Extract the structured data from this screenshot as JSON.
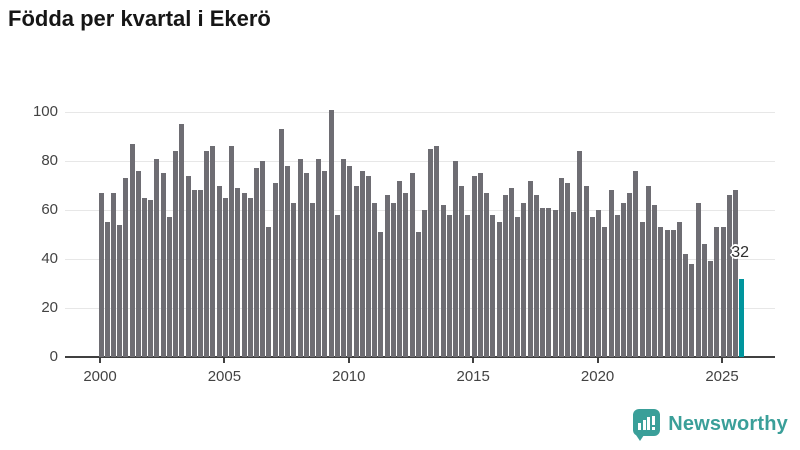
{
  "title": "Födda per kvartal i Ekerö",
  "chart_data": {
    "type": "bar",
    "title": "Födda per kvartal i Ekerö",
    "series_name": "Födda per kvartal",
    "period": "quarterly",
    "start": "2000-Q1",
    "end": "2025-Q4",
    "values": [
      67,
      55,
      67,
      54,
      73,
      87,
      76,
      65,
      64,
      81,
      75,
      57,
      84,
      95,
      74,
      68,
      68,
      84,
      86,
      70,
      65,
      86,
      69,
      67,
      65,
      77,
      80,
      53,
      71,
      93,
      78,
      63,
      81,
      75,
      63,
      81,
      76,
      101,
      58,
      81,
      78,
      70,
      76,
      74,
      63,
      51,
      66,
      63,
      72,
      67,
      75,
      51,
      60,
      85,
      86,
      62,
      58,
      80,
      70,
      58,
      74,
      75,
      67,
      58,
      55,
      66,
      69,
      57,
      63,
      72,
      66,
      61,
      61,
      60,
      73,
      71,
      59,
      84,
      70,
      57,
      60,
      53,
      68,
      58,
      63,
      67,
      76,
      55,
      70,
      62,
      53,
      52,
      52,
      55,
      42,
      38,
      63,
      46,
      39,
      53,
      53,
      66,
      68,
      32
    ],
    "y_ticks": [
      0,
      20,
      40,
      60,
      80,
      100
    ],
    "x_tick_years": [
      2000,
      2005,
      2010,
      2015,
      2020,
      2025
    ],
    "ylim": [
      0,
      105
    ],
    "grid": true,
    "legend": "none",
    "bar_color": "#6e6d73",
    "highlight_last": {
      "value": 32,
      "label": "32",
      "color": "#00959d"
    }
  },
  "branding": {
    "logo_text": "Newsworthy",
    "logo_color": "#3a9f99",
    "logo_icon": "newsworthy-speech-bubble-barchart-icon"
  }
}
